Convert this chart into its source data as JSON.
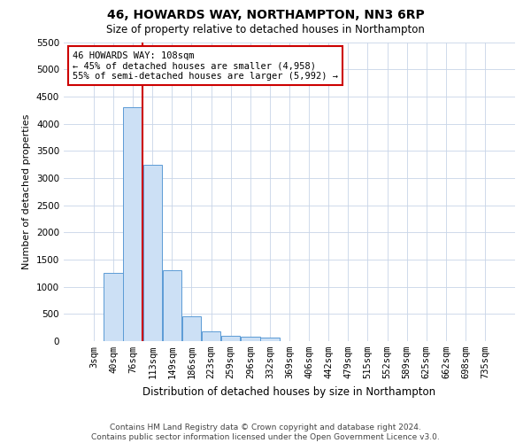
{
  "title1": "46, HOWARDS WAY, NORTHAMPTON, NN3 6RP",
  "title2": "Size of property relative to detached houses in Northampton",
  "xlabel": "Distribution of detached houses by size in Northampton",
  "ylabel": "Number of detached properties",
  "footnote": "Contains HM Land Registry data © Crown copyright and database right 2024.\nContains public sector information licensed under the Open Government Licence v3.0.",
  "bar_color": "#cce0f5",
  "bar_edge_color": "#5b9bd5",
  "grid_color": "#c8d4e8",
  "annotation_box_color": "#cc0000",
  "vline_color": "#cc0000",
  "categories": [
    "3sqm",
    "40sqm",
    "76sqm",
    "113sqm",
    "149sqm",
    "186sqm",
    "223sqm",
    "259sqm",
    "296sqm",
    "332sqm",
    "369sqm",
    "406sqm",
    "442sqm",
    "479sqm",
    "515sqm",
    "552sqm",
    "589sqm",
    "625sqm",
    "662sqm",
    "698sqm",
    "735sqm"
  ],
  "values": [
    0,
    1250,
    4300,
    3250,
    1300,
    450,
    175,
    100,
    75,
    60,
    0,
    0,
    0,
    0,
    0,
    0,
    0,
    0,
    0,
    0,
    0
  ],
  "ylim": [
    0,
    5500
  ],
  "yticks": [
    0,
    500,
    1000,
    1500,
    2000,
    2500,
    3000,
    3500,
    4000,
    4500,
    5000,
    5500
  ],
  "property_label": "46 HOWARDS WAY: 108sqm",
  "annotation_line1": "← 45% of detached houses are smaller (4,958)",
  "annotation_line2": "55% of semi-detached houses are larger (5,992) →",
  "vline_x_index": 2.5,
  "bg_color": "#ffffff",
  "title1_fontsize": 10,
  "title2_fontsize": 8.5,
  "footnote_fontsize": 6.5,
  "ylabel_fontsize": 8,
  "xlabel_fontsize": 8.5,
  "tick_fontsize": 7.5,
  "annot_fontsize": 7.5
}
